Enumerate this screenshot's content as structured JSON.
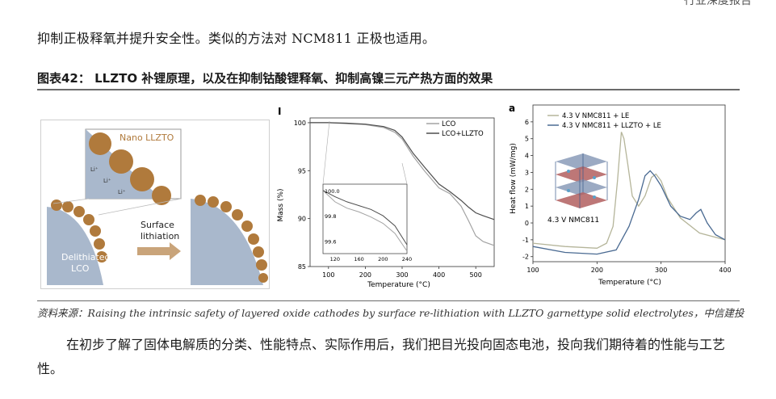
{
  "header": {
    "tag": "行业深度报告"
  },
  "paragraph_top": "抑制正极释氧并提升安全性。类似的方法对 NCM811 正极也适用。",
  "figure": {
    "title": "图表42： LLZTO 补锂原理，以及在抑制钴酸锂释氧、抑制高镍三元产热方面的效果",
    "panel_schematic": {
      "nano_label": "Nano LLZTO",
      "li_labels": [
        "Li⁺",
        "Li⁺",
        "Li⁺"
      ],
      "arrow_label_line1": "Surface",
      "arrow_label_line2": "lithiation",
      "lco_label_line1": "Delithiated",
      "lco_label_line2": "LCO",
      "colors": {
        "particle": "#b07a3c",
        "lco": "#a9b8cc",
        "arrow": "#c9a47a"
      }
    },
    "panel_tga": {
      "panel_letter": "I",
      "xlabel": "Temperature (°C)",
      "ylabel": "Mass (%)",
      "legend": [
        "LCO",
        "LCO+LLZTO"
      ],
      "inset_x_ticks": [
        "120",
        "160",
        "200",
        "240"
      ],
      "inset_y_ticks": [
        "100.0",
        "99.8",
        "99.6"
      ]
    },
    "panel_dsc": {
      "panel_letter": "a",
      "xlabel": "Temperature (°C)",
      "ylabel": "Heat flow (mW/mg)",
      "legend": [
        "4.3 V NMC811 + LE",
        "4.3 V NMC811 + LLZTO + LE"
      ],
      "crystal_label": "4.3 V NMC811"
    },
    "source": "资料来源：Raising the intrinsic safety of layered oxide cathodes by surface re-lithiation with LLZTO garnettype solid electrolytes，中信建投"
  },
  "paragraph_bottom": "在初步了解了固体电解质的分类、性能特点、实际作用后，我们把目光投向固态电池，投向我们期待着的性能与工艺性。",
  "chart_data": [
    {
      "type": "line",
      "xlabel": "Temperature (°C)",
      "ylabel": "Mass (%)",
      "xlim": [
        50,
        550
      ],
      "ylim": [
        85,
        100.5
      ],
      "x_ticks": [
        100,
        200,
        300,
        400,
        500
      ],
      "y_ticks": [
        85,
        90,
        95,
        100
      ],
      "series": [
        {
          "name": "LCO",
          "color": "#a3a3a3",
          "x": [
            50,
            100,
            150,
            200,
            250,
            280,
            300,
            330,
            360,
            400,
            430,
            460,
            480,
            500,
            520,
            550
          ],
          "y": [
            100,
            100,
            99.9,
            99.8,
            99.5,
            99.0,
            98.3,
            96.5,
            95.0,
            93.2,
            92.6,
            91.3,
            89.8,
            88.2,
            87.6,
            87.2
          ]
        },
        {
          "name": "LCO+LLZTO",
          "color": "#4d4d4d",
          "x": [
            50,
            100,
            150,
            200,
            250,
            280,
            300,
            330,
            360,
            400,
            430,
            460,
            480,
            500,
            520,
            550
          ],
          "y": [
            100,
            100,
            99.95,
            99.85,
            99.6,
            99.2,
            98.5,
            96.8,
            95.4,
            93.6,
            92.8,
            91.9,
            91.2,
            90.6,
            90.3,
            89.9
          ]
        }
      ],
      "inset": {
        "xlim": [
          100,
          240
        ],
        "ylim": [
          99.5,
          100.05
        ],
        "series": [
          {
            "name": "LCO",
            "x": [
              100,
              120,
              140,
              160,
              180,
              200,
              220,
              240
            ],
            "y": [
              100.0,
              99.91,
              99.86,
              99.83,
              99.79,
              99.74,
              99.66,
              99.52
            ]
          },
          {
            "name": "LCO+LLZTO",
            "x": [
              100,
              120,
              140,
              160,
              180,
              200,
              220,
              240
            ],
            "y": [
              100.0,
              99.95,
              99.91,
              99.88,
              99.85,
              99.8,
              99.72,
              99.57
            ]
          }
        ]
      }
    },
    {
      "type": "line",
      "xlabel": "Temperature (°C)",
      "ylabel": "Heat flow (mW/mg)",
      "xlim": [
        100,
        400
      ],
      "ylim": [
        -2.3,
        7.0
      ],
      "x_ticks": [
        100,
        200,
        300,
        400
      ],
      "y_ticks": [
        -2,
        -1,
        0,
        1,
        2,
        3,
        4,
        5,
        6
      ],
      "series": [
        {
          "name": "4.3 V NMC811 + LE",
          "color": "#b5b59a",
          "x": [
            100,
            150,
            200,
            215,
            225,
            232,
            238,
            242,
            248,
            255,
            265,
            275,
            285,
            292,
            300,
            310,
            330,
            360,
            400
          ],
          "y": [
            -1.2,
            -1.4,
            -1.5,
            -1.2,
            -0.2,
            2.5,
            5.4,
            5.0,
            3.5,
            1.6,
            1.0,
            1.6,
            2.7,
            2.9,
            2.5,
            1.5,
            0.3,
            -0.6,
            -1.0
          ]
        },
        {
          "name": "4.3 V NMC811 + LLZTO + LE",
          "color": "#4a6a92",
          "x": [
            100,
            150,
            200,
            230,
            250,
            265,
            275,
            283,
            290,
            300,
            315,
            330,
            345,
            355,
            362,
            372,
            385,
            400
          ],
          "y": [
            -1.4,
            -1.75,
            -1.85,
            -1.6,
            -0.2,
            1.4,
            2.8,
            3.1,
            2.8,
            2.2,
            1.0,
            0.4,
            0.2,
            0.6,
            0.8,
            0.0,
            -0.7,
            -1.0
          ]
        }
      ]
    }
  ]
}
